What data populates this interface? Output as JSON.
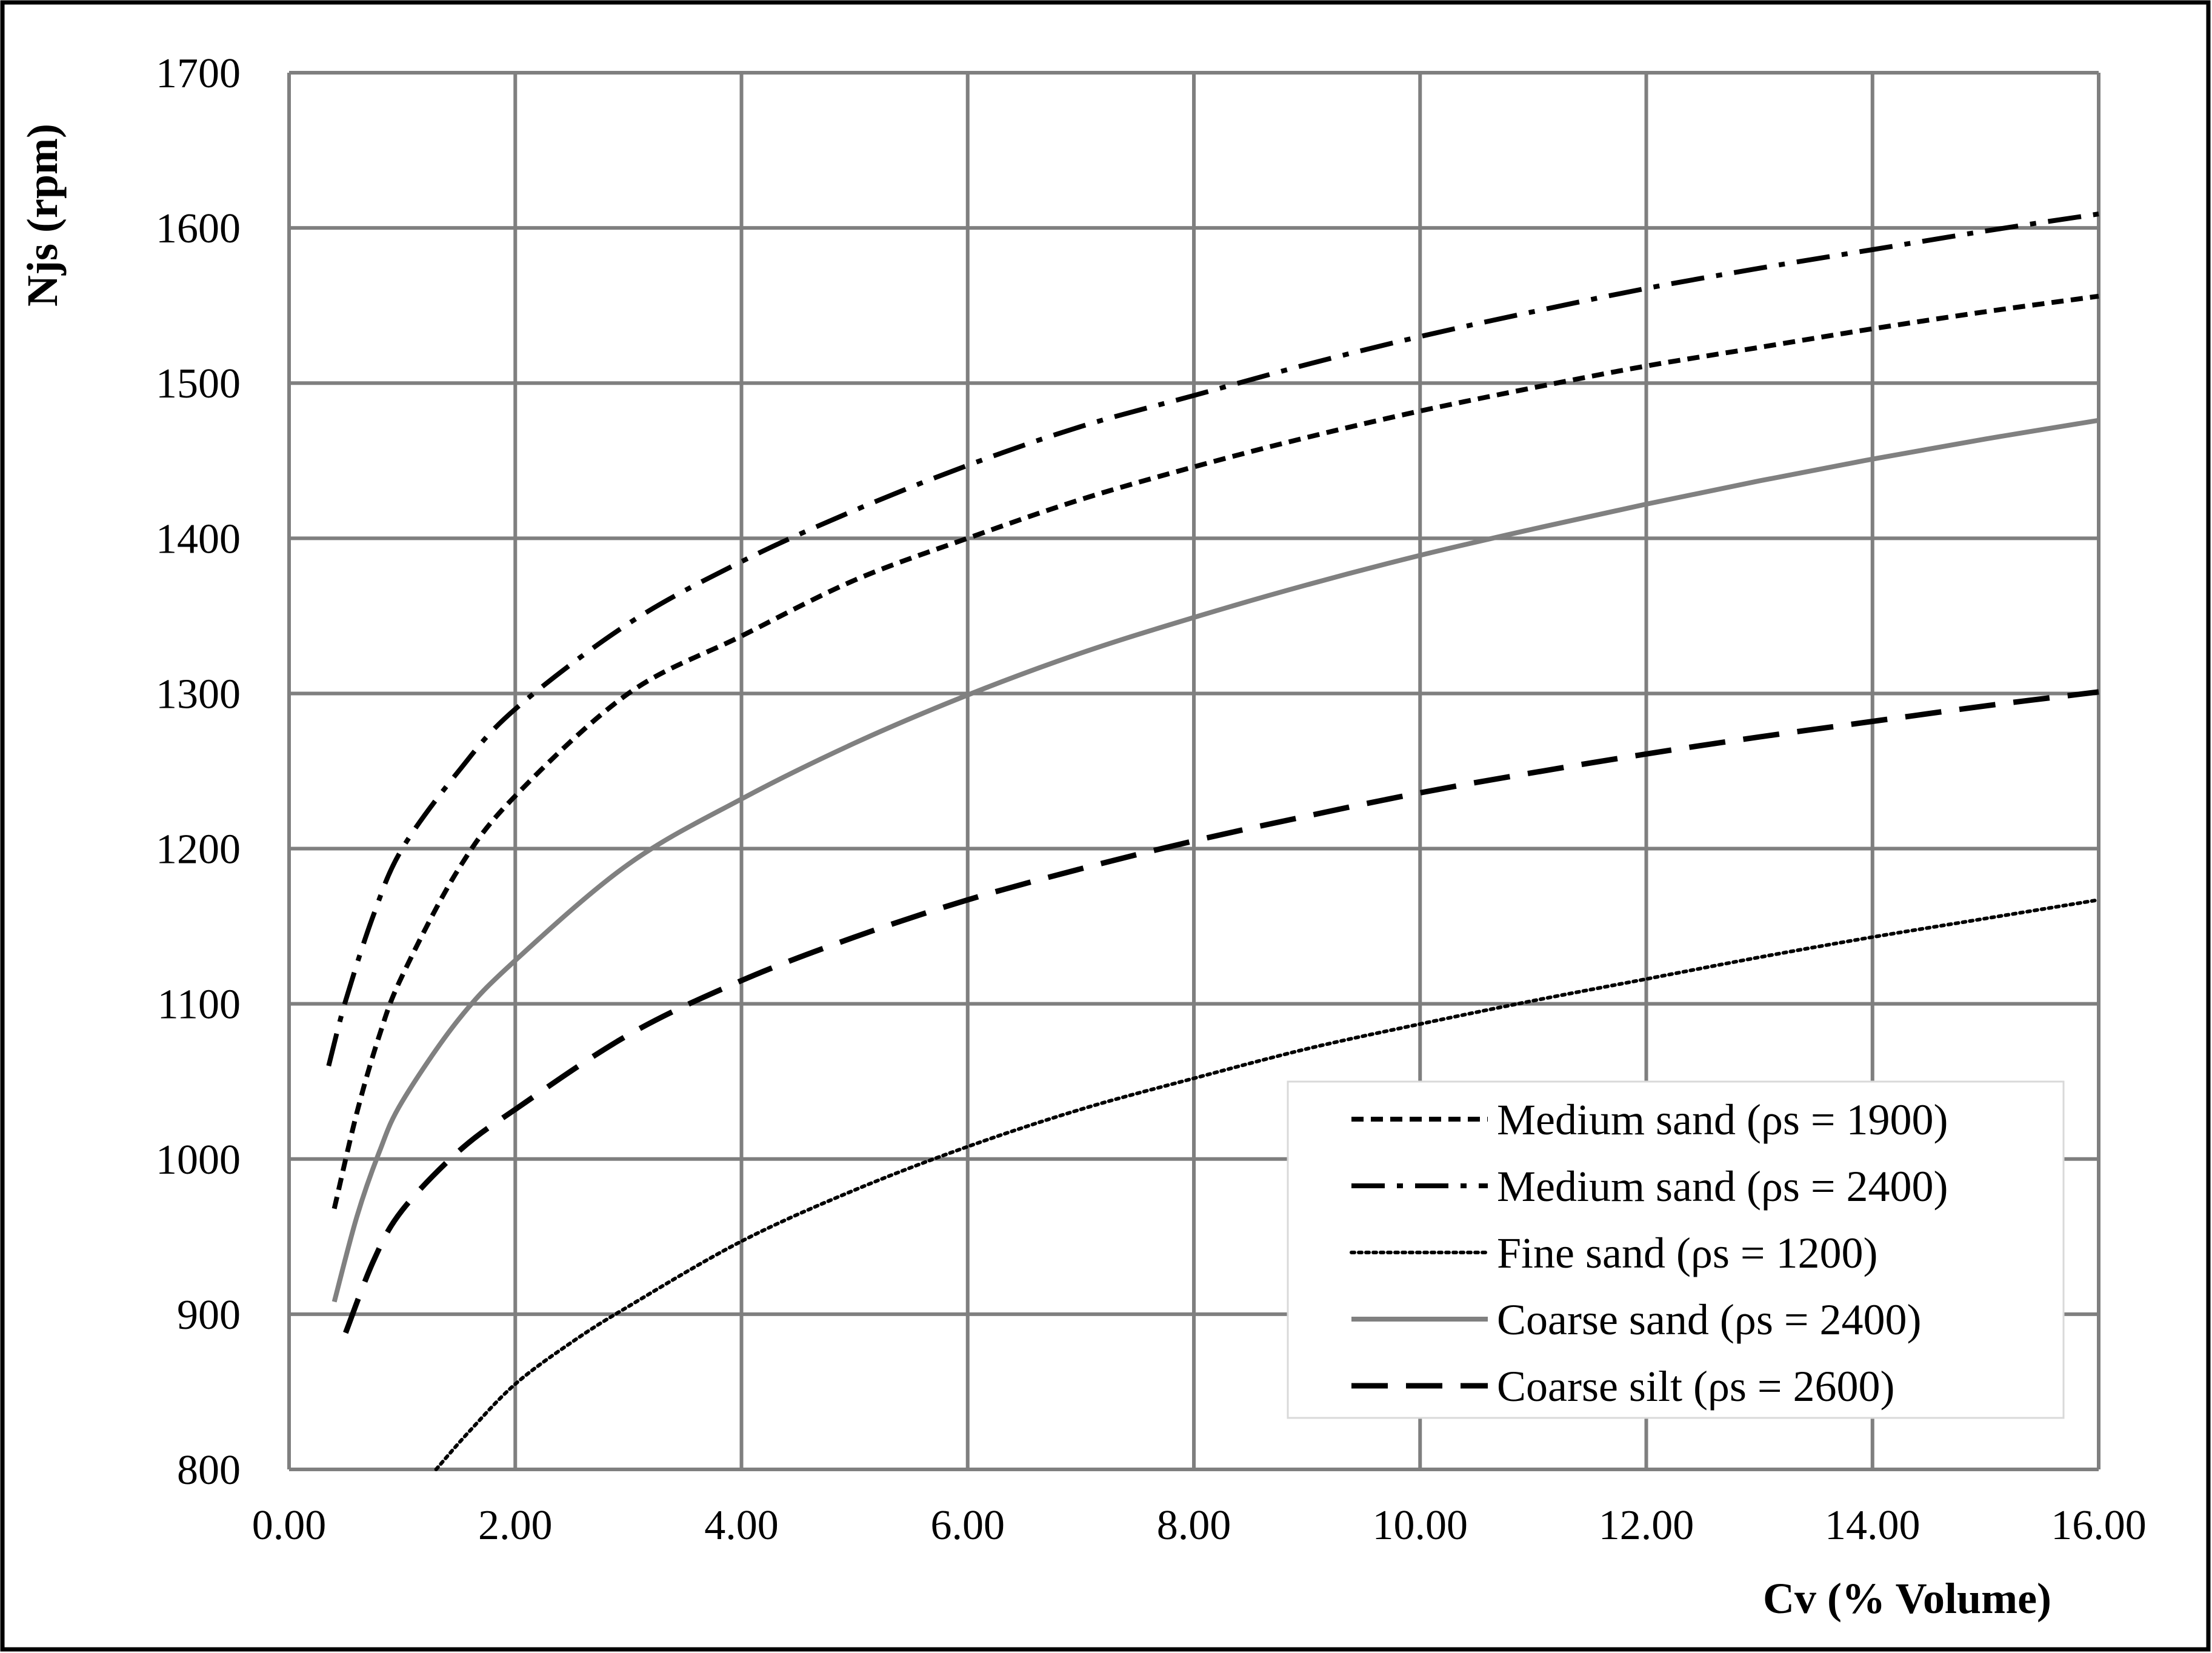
{
  "chart_data": {
    "type": "line",
    "xlabel": "Cv (% Volume)",
    "ylabel": "Njs (rpm)",
    "xlim": [
      0,
      16
    ],
    "ylim": [
      800,
      1700
    ],
    "xticks": [
      0,
      2,
      4,
      6,
      8,
      10,
      12,
      14,
      16
    ],
    "yticks": [
      800,
      900,
      1000,
      1100,
      1200,
      1300,
      1400,
      1500,
      1600,
      1700
    ],
    "xtick_labels": [
      "0.00",
      "2.00",
      "4.00",
      "6.00",
      "8.00",
      "10.00",
      "12.00",
      "14.00",
      "16.00"
    ],
    "ytick_labels": [
      "800",
      "900",
      "1000",
      "1100",
      "1200",
      "1300",
      "1400",
      "1500",
      "1600",
      "1700"
    ],
    "grid": true,
    "legend_position": "bottom-right",
    "series": [
      {
        "name": "Medium sand (ρs = 1900)",
        "style": "short-dash",
        "color": "#000000",
        "x": [
          0.4,
          0.6,
          0.8,
          1,
          1.5,
          2,
          3,
          4,
          5,
          6,
          7,
          8,
          9,
          10,
          11,
          12,
          13,
          14,
          15,
          16
        ],
        "y": [
          968,
          1030,
          1080,
          1118,
          1187,
          1234,
          1300,
          1337,
          1373,
          1400,
          1425,
          1446,
          1465,
          1482,
          1497,
          1511,
          1523,
          1535,
          1546,
          1556
        ]
      },
      {
        "name": "Medium sand (ρs = 2400)",
        "style": "dash-dot",
        "color": "#000000",
        "x": [
          0.35,
          0.5,
          0.75,
          1,
          1.5,
          2,
          3,
          4,
          5,
          6,
          7,
          8,
          9,
          10,
          11,
          12,
          13,
          14,
          15,
          16
        ],
        "y": [
          1060,
          1102,
          1158,
          1200,
          1250,
          1290,
          1345,
          1385,
          1418,
          1447,
          1472,
          1492,
          1512,
          1530,
          1546,
          1561,
          1574,
          1586,
          1598,
          1609
        ]
      },
      {
        "name": "Fine sand  (ρs = 1200)",
        "style": "dotted",
        "color": "#000000",
        "x": [
          1.3,
          1.6,
          2,
          2.5,
          3,
          4,
          5,
          6,
          7,
          8,
          9,
          10,
          11,
          12,
          13,
          14,
          15,
          16
        ],
        "y": [
          800,
          825,
          855,
          882,
          905,
          947,
          980,
          1008,
          1032,
          1052,
          1071,
          1087,
          1102,
          1116,
          1130,
          1143,
          1155,
          1167
        ]
      },
      {
        "name": "Coarse sand  (ρs = 2400)",
        "style": "solid",
        "color": "#808080",
        "x": [
          0.4,
          0.6,
          0.8,
          1,
          1.5,
          2,
          3,
          4,
          5,
          6,
          7,
          8,
          9,
          10,
          11,
          12,
          13,
          14,
          15,
          16
        ],
        "y": [
          908,
          963,
          1005,
          1037,
          1090,
          1128,
          1190,
          1232,
          1268,
          1299,
          1326,
          1349,
          1370,
          1389,
          1406,
          1422,
          1437,
          1451,
          1464,
          1476
        ]
      },
      {
        "name": "Coarse silt  (ρs = 2600)",
        "style": "long-dash",
        "color": "#000000",
        "x": [
          0.5,
          0.75,
          1,
          1.5,
          2,
          3,
          4,
          5,
          6,
          7,
          8,
          9,
          10,
          11,
          12,
          13,
          14,
          15,
          16
        ],
        "y": [
          888,
          935,
          967,
          1005,
          1032,
          1080,
          1115,
          1143,
          1167,
          1187,
          1205,
          1221,
          1236,
          1249,
          1261,
          1272,
          1282,
          1292,
          1301
        ]
      }
    ]
  }
}
